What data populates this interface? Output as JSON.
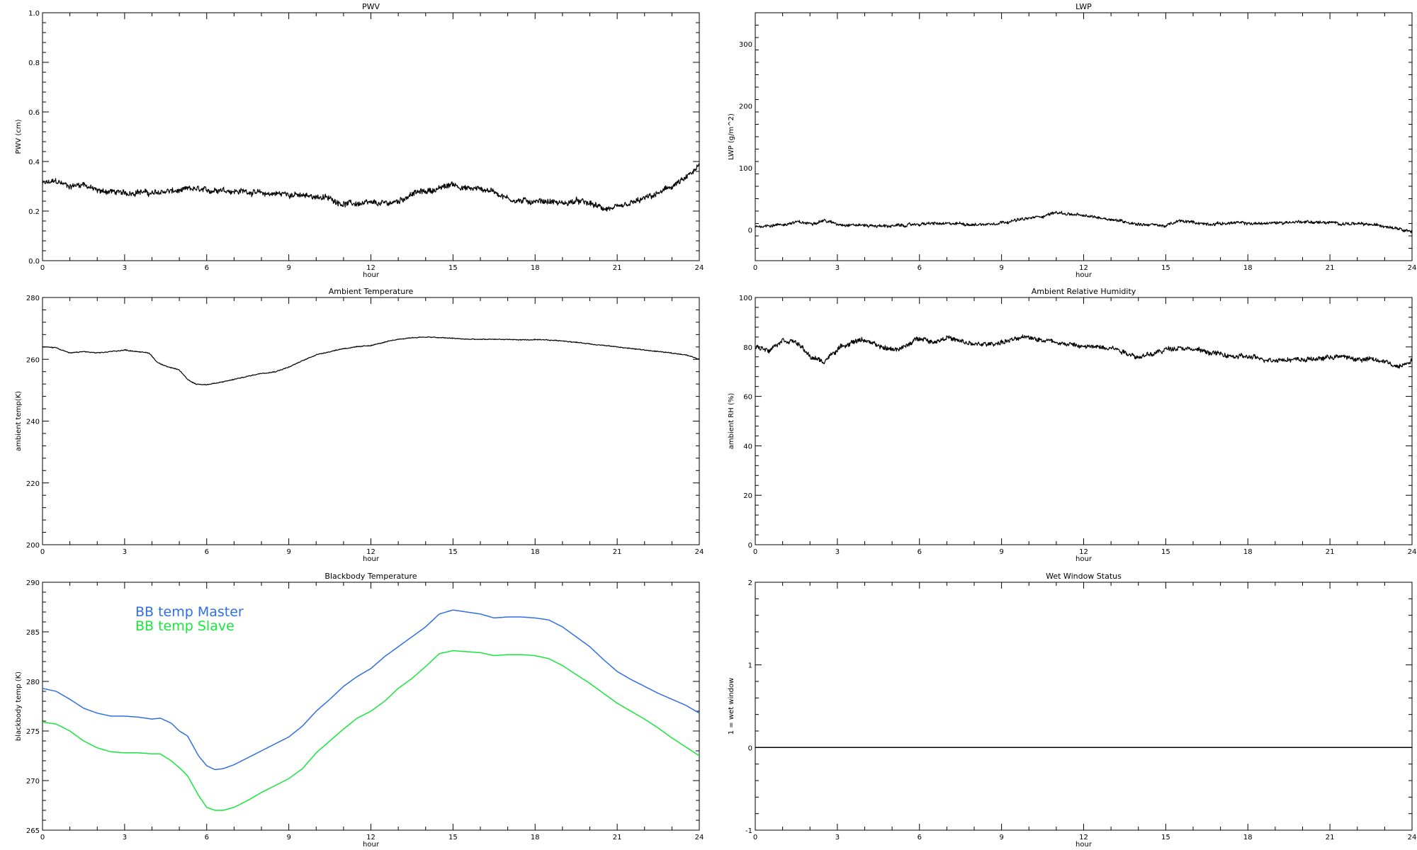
{
  "chart_data": [
    {
      "id": "pwv",
      "type": "line",
      "title": "PWV",
      "xlabel": "hour",
      "ylabel": "PWV (cm)",
      "xlim": [
        0,
        24
      ],
      "ylim": [
        0,
        1
      ],
      "xticks": [
        0,
        3,
        6,
        9,
        12,
        15,
        18,
        21,
        24
      ],
      "yticks": [
        0,
        0.2,
        0.4,
        0.6,
        0.8,
        1
      ],
      "ytick_labels": [
        "0.0",
        "0.2",
        "0.4",
        "0.6",
        "0.8",
        "1.0"
      ],
      "noise": 0.012,
      "series": [
        {
          "color": "#000000",
          "x": [
            0,
            0.5,
            1,
            1.5,
            2,
            2.5,
            3,
            3.5,
            4,
            4.5,
            5,
            5.5,
            6,
            6.5,
            7,
            7.5,
            8,
            8.5,
            9,
            9.5,
            10,
            10.5,
            11,
            11.5,
            12,
            12.5,
            13,
            13.5,
            14,
            14.5,
            15,
            15.5,
            16,
            16.5,
            17,
            17.5,
            18,
            18.5,
            19,
            19.5,
            20,
            20.5,
            21,
            21.5,
            22,
            22.5,
            23,
            23.5,
            24
          ],
          "values": [
            0.31,
            0.32,
            0.3,
            0.31,
            0.28,
            0.28,
            0.27,
            0.28,
            0.27,
            0.28,
            0.28,
            0.29,
            0.28,
            0.29,
            0.28,
            0.28,
            0.27,
            0.27,
            0.27,
            0.26,
            0.26,
            0.25,
            0.23,
            0.23,
            0.23,
            0.23,
            0.24,
            0.27,
            0.28,
            0.29,
            0.31,
            0.29,
            0.29,
            0.28,
            0.25,
            0.24,
            0.24,
            0.24,
            0.23,
            0.24,
            0.23,
            0.21,
            0.21,
            0.23,
            0.25,
            0.27,
            0.3,
            0.33,
            0.38
          ]
        }
      ]
    },
    {
      "id": "lwp",
      "type": "line",
      "title": "LWP",
      "xlabel": "hour",
      "ylabel": "LWP (g/m^2)",
      "xlim": [
        0,
        24
      ],
      "ylim": [
        -50,
        350
      ],
      "xticks": [
        0,
        3,
        6,
        9,
        12,
        15,
        18,
        21,
        24
      ],
      "yticks": [
        0,
        100,
        200,
        300
      ],
      "noise": 2.5,
      "series": [
        {
          "color": "#000000",
          "x": [
            0,
            0.5,
            1,
            1.5,
            2,
            2.5,
            3,
            3.5,
            4,
            4.5,
            5,
            5.5,
            6,
            6.5,
            7,
            7.5,
            8,
            8.5,
            9,
            9.5,
            10,
            10.5,
            11,
            11.5,
            12,
            12.5,
            13,
            13.5,
            14,
            14.5,
            15,
            15.5,
            16,
            16.5,
            17,
            17.5,
            18,
            18.5,
            19,
            19.5,
            20,
            20.5,
            21,
            21.5,
            22,
            22.5,
            23,
            23.5,
            24
          ],
          "values": [
            5,
            7,
            8,
            12,
            10,
            15,
            9,
            8,
            7,
            6,
            6,
            7,
            9,
            10,
            9,
            10,
            8,
            9,
            12,
            15,
            18,
            22,
            28,
            25,
            22,
            20,
            17,
            13,
            9,
            8,
            6,
            14,
            12,
            9,
            10,
            11,
            10,
            10,
            11,
            12,
            13,
            12,
            11,
            10,
            9,
            8,
            6,
            3,
            -3
          ]
        }
      ]
    },
    {
      "id": "ambient-temperature",
      "type": "line",
      "title": "Ambient Temperature",
      "xlabel": "hour",
      "ylabel": "ambient temp(K)",
      "xlim": [
        0,
        24
      ],
      "ylim": [
        200,
        280
      ],
      "xticks": [
        0,
        3,
        6,
        9,
        12,
        15,
        18,
        21,
        24
      ],
      "yticks": [
        200,
        220,
        240,
        260,
        280
      ],
      "noise": 0.15,
      "series": [
        {
          "color": "#000000",
          "x": [
            0,
            0.5,
            1,
            1.5,
            2,
            2.5,
            3,
            3.5,
            3.9,
            4.2,
            4.6,
            5.0,
            5.3,
            5.6,
            6.0,
            6.5,
            7,
            7.5,
            8,
            8.5,
            9,
            9.5,
            10,
            10.5,
            11,
            11.5,
            12,
            12.5,
            13,
            13.5,
            14,
            14.5,
            15,
            15.5,
            16,
            16.5,
            17,
            17.5,
            18,
            18.5,
            19,
            19.5,
            20,
            20.5,
            21,
            21.5,
            22,
            22.5,
            23,
            23.5,
            24
          ],
          "values": [
            264,
            263.8,
            262,
            262.5,
            262,
            262.5,
            263,
            262.5,
            262,
            259,
            257.5,
            256.5,
            253.5,
            252,
            251.8,
            252.5,
            253.5,
            254.5,
            255.5,
            256,
            257.5,
            259.5,
            261.5,
            262.5,
            263.5,
            264,
            264.5,
            265.5,
            266.5,
            267,
            267.2,
            267,
            266.8,
            266.5,
            266.4,
            266.5,
            266.4,
            266.3,
            266.3,
            266.2,
            266,
            265.5,
            265,
            264.5,
            264,
            263.5,
            263,
            262.5,
            262,
            261.5,
            260
          ]
        }
      ]
    },
    {
      "id": "ambient-relative-humidity",
      "type": "line",
      "title": "Ambient Relative Humidity",
      "xlabel": "hour",
      "ylabel": "ambient RH (%)",
      "xlim": [
        0,
        24
      ],
      "ylim": [
        0,
        100
      ],
      "xticks": [
        0,
        3,
        6,
        9,
        12,
        15,
        18,
        21,
        24
      ],
      "yticks": [
        0,
        20,
        40,
        60,
        80,
        100
      ],
      "noise": 1.0,
      "series": [
        {
          "color": "#000000",
          "x": [
            0,
            0.5,
            1,
            1.5,
            2,
            2.5,
            3,
            3.5,
            4,
            4.5,
            5,
            5.5,
            6,
            6.5,
            7,
            7.5,
            8,
            8.5,
            9,
            9.5,
            10,
            10.5,
            11,
            11.5,
            12,
            12.5,
            13,
            13.5,
            14,
            14.5,
            15,
            15.5,
            16,
            16.5,
            17,
            17.5,
            18,
            18.5,
            19,
            19.5,
            20,
            20.5,
            21,
            21.5,
            22,
            22.5,
            23,
            23.5,
            24
          ],
          "values": [
            80,
            79,
            83,
            82,
            76,
            74,
            79,
            82,
            83,
            80,
            79,
            80,
            84,
            82,
            84,
            82,
            81,
            81,
            82,
            83,
            84,
            83,
            82,
            81,
            80,
            80,
            80,
            78,
            76,
            77,
            79,
            80,
            79,
            78,
            77,
            76,
            76,
            75,
            75,
            75,
            75,
            75,
            76,
            76,
            75,
            75,
            74,
            72,
            75
          ]
        }
      ]
    },
    {
      "id": "blackbody-temperature",
      "type": "line",
      "title": "Blackbody Temperature",
      "xlabel": "hour",
      "ylabel": "blackbody temp (K)",
      "xlim": [
        0,
        24
      ],
      "ylim": [
        265,
        290
      ],
      "xticks": [
        0,
        3,
        6,
        9,
        12,
        15,
        18,
        21,
        24
      ],
      "yticks": [
        265,
        270,
        275,
        280,
        285,
        290
      ],
      "noise": 0,
      "legend": [
        "BB temp Master",
        "BB temp Slave"
      ],
      "series": [
        {
          "name": "BB temp Master",
          "color": "#2f6ee6",
          "x": [
            0,
            0.5,
            1,
            1.5,
            2,
            2.5,
            3,
            3.5,
            4,
            4.3,
            4.7,
            5,
            5.3,
            5.7,
            6,
            6.3,
            6.6,
            7,
            7.5,
            8,
            8.5,
            9,
            9.5,
            10,
            10.5,
            11,
            11.5,
            12,
            12.5,
            13,
            13.5,
            14,
            14.5,
            15,
            15.5,
            16,
            16.5,
            17,
            17.5,
            18,
            18.5,
            19,
            19.5,
            20,
            20.5,
            21,
            21.5,
            22,
            22.5,
            23,
            23.5,
            24
          ],
          "values": [
            279.3,
            279,
            278.2,
            277.3,
            276.8,
            276.5,
            276.5,
            276.4,
            276.2,
            276.3,
            275.8,
            275,
            274.5,
            272.5,
            271.5,
            271.1,
            271.2,
            271.6,
            272.3,
            273,
            273.7,
            274.4,
            275.5,
            277,
            278.2,
            279.5,
            280.5,
            281.3,
            282.5,
            283.5,
            284.5,
            285.5,
            286.8,
            287.2,
            287,
            286.8,
            286.4,
            286.5,
            286.5,
            286.4,
            286.2,
            285.5,
            284.5,
            283.5,
            282.2,
            281,
            280.2,
            279.5,
            278.8,
            278.2,
            277.6,
            276.8
          ]
        },
        {
          "name": "BB temp Slave",
          "color": "#17e63c",
          "x": [
            0,
            0.5,
            1,
            1.5,
            2,
            2.5,
            3,
            3.5,
            4,
            4.3,
            4.7,
            5,
            5.3,
            5.7,
            6,
            6.3,
            6.6,
            7,
            7.5,
            8,
            8.5,
            9,
            9.5,
            10,
            10.5,
            11,
            11.5,
            12,
            12.5,
            13,
            13.5,
            14,
            14.5,
            15,
            15.5,
            16,
            16.5,
            17,
            17.5,
            18,
            18.5,
            19,
            19.5,
            20,
            20.5,
            21,
            21.5,
            22,
            22.5,
            23,
            23.5,
            24
          ],
          "values": [
            275.9,
            275.7,
            275,
            274,
            273.3,
            272.9,
            272.8,
            272.8,
            272.7,
            272.7,
            272,
            271.3,
            270.5,
            268.5,
            267.3,
            267,
            267,
            267.3,
            268,
            268.8,
            269.5,
            270.2,
            271.2,
            272.8,
            274,
            275.2,
            276.3,
            277,
            278,
            279.3,
            280.3,
            281.5,
            282.8,
            283.1,
            283,
            282.9,
            282.6,
            282.7,
            282.7,
            282.6,
            282.3,
            281.6,
            280.7,
            279.8,
            278.8,
            277.8,
            277,
            276.2,
            275.3,
            274.3,
            273.4,
            272.5
          ]
        }
      ]
    },
    {
      "id": "wet-window-status",
      "type": "line",
      "title": "Wet Window Status",
      "xlabel": "hour",
      "ylabel": "1 = wet window",
      "xlim": [
        0,
        24
      ],
      "ylim": [
        -1,
        2
      ],
      "xticks": [
        0,
        3,
        6,
        9,
        12,
        15,
        18,
        21,
        24
      ],
      "yticks": [
        -1,
        0,
        1,
        2
      ],
      "noise": 0,
      "series": [
        {
          "color": "#000000",
          "x": [
            0,
            24
          ],
          "values": [
            0,
            0
          ]
        }
      ]
    }
  ]
}
